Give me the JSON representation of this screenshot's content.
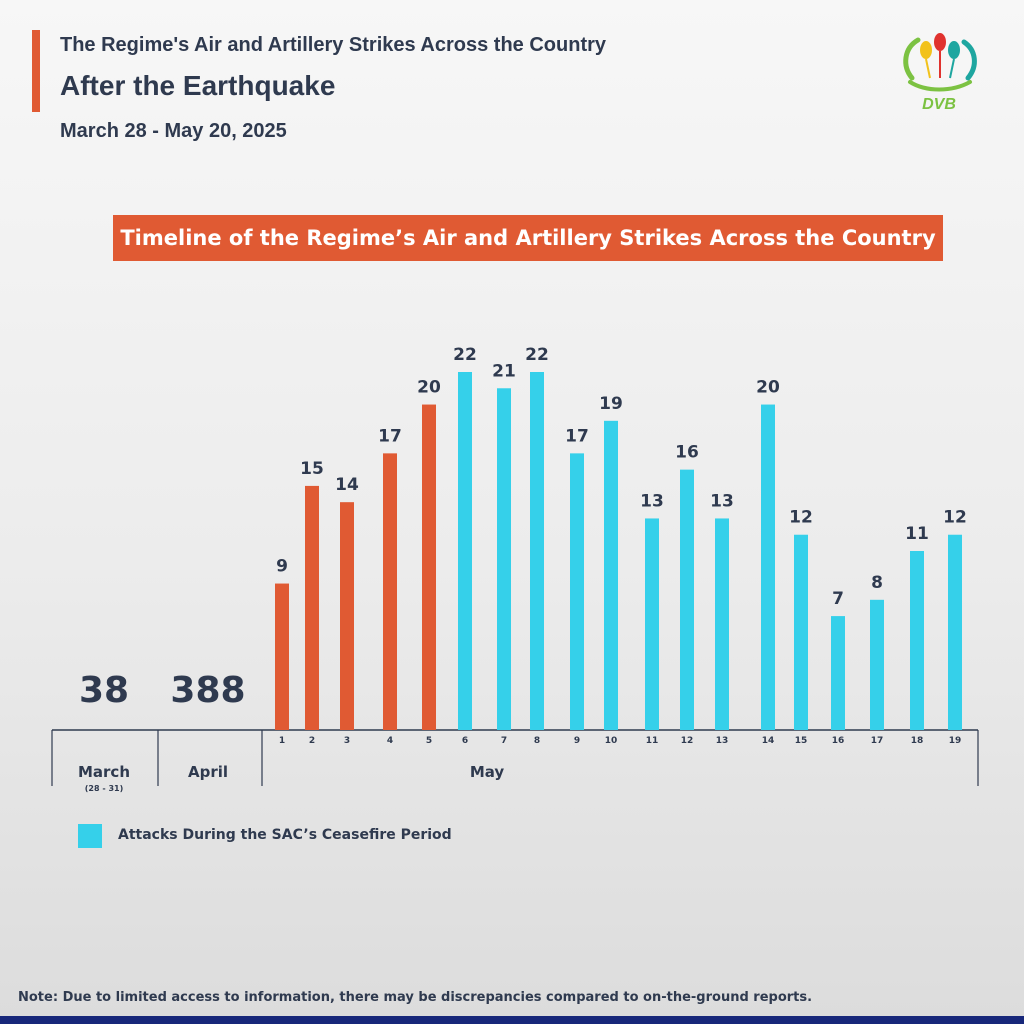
{
  "header": {
    "subtitle": "The Regime's Air and Artillery Strikes Across the Country",
    "title": "After the Earthquake",
    "date_range": "March 28 - May 20, 2025",
    "logo_text": "DVB"
  },
  "banner": "Timeline of the Regime’s Air and Artillery Strikes Across the Country",
  "legend": {
    "label": "Attacks During the SAC’s Ceasefire Period"
  },
  "note": "Note: Due to limited access to information, there may be discrepancies compared to on-the-ground reports.",
  "colors": {
    "accent": "#e05a33",
    "ceasefire": "#35d0ea",
    "text": "#2f3a4f",
    "bottom_strip": "#17277a"
  },
  "chart_data": {
    "type": "bar",
    "title": "Timeline of the Regime’s Air and Artillery Strikes Across the Country",
    "totals": [
      {
        "label": "March",
        "sublabel": "(28 - 31)",
        "value": 38
      },
      {
        "label": "April",
        "sublabel": "",
        "value": 388
      }
    ],
    "group_label": "May",
    "categories": [
      "1",
      "2",
      "3",
      "4",
      "5",
      "6",
      "7",
      "8",
      "9",
      "10",
      "11",
      "12",
      "13",
      "14",
      "15",
      "16",
      "17",
      "18",
      "19"
    ],
    "values": [
      9,
      15,
      14,
      17,
      20,
      22,
      21,
      22,
      17,
      19,
      13,
      16,
      13,
      20,
      12,
      7,
      8,
      11,
      12
    ],
    "ceasefire": [
      false,
      false,
      false,
      false,
      false,
      true,
      true,
      true,
      true,
      true,
      true,
      true,
      true,
      true,
      true,
      true,
      true,
      true,
      true
    ],
    "ylim": [
      0,
      22
    ]
  }
}
